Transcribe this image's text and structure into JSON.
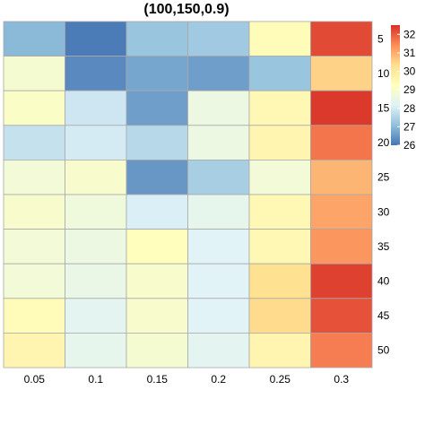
{
  "chart_data": {
    "type": "heatmap",
    "title": "(100,150,0.9)",
    "xlabel": "",
    "ylabel": "",
    "x_categories": [
      "0.05",
      "0.1",
      "0.15",
      "0.2",
      "0.25",
      "0.3"
    ],
    "y_categories": [
      "5",
      "10",
      "15",
      "20",
      "25",
      "30",
      "35",
      "40",
      "45",
      "50"
    ],
    "values": [
      [
        27.0,
        26.1,
        27.2,
        27.3,
        29.4,
        32.2
      ],
      [
        28.9,
        26.3,
        26.7,
        26.6,
        27.2,
        30.5
      ],
      [
        29.1,
        27.9,
        26.6,
        28.6,
        29.5,
        32.4
      ],
      [
        27.8,
        28.0,
        27.6,
        28.6,
        29.6,
        31.7
      ],
      [
        28.8,
        29.0,
        26.5,
        27.4,
        28.8,
        30.9
      ],
      [
        29.0,
        28.7,
        28.1,
        28.4,
        29.5,
        31.1
      ],
      [
        28.8,
        28.6,
        29.3,
        28.2,
        29.5,
        31.3
      ],
      [
        28.8,
        28.5,
        29.0,
        28.2,
        30.3,
        32.3
      ],
      [
        29.4,
        28.3,
        29.0,
        28.2,
        30.4,
        32.1
      ],
      [
        29.6,
        28.4,
        28.9,
        28.3,
        29.6,
        31.6
      ]
    ],
    "color_scale": {
      "min": 26,
      "max": 32.5,
      "stops": [
        "#4575B4",
        "#91BFDB",
        "#E0F3F8",
        "#FFFFBF",
        "#FEE090",
        "#FC8D59",
        "#D73027"
      ],
      "ticks": [
        "26",
        "27",
        "28",
        "29",
        "30",
        "31",
        "32"
      ]
    },
    "legend_position": "right",
    "grid": true
  }
}
